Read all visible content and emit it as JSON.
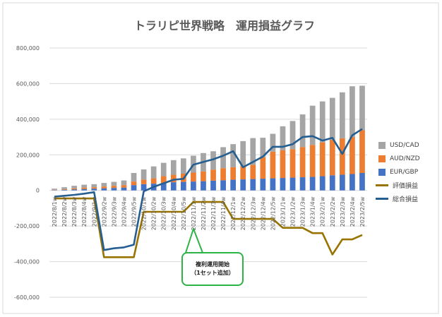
{
  "chart_data": {
    "type": "bar",
    "title": "トラリピ世界戦略　運用損益グラフ",
    "categories": [
      "2022/8/1w",
      "2022/8/2w",
      "2022/8/3w",
      "2022/8/4w",
      "2022/9/1w",
      "2022/9/2w",
      "2022/9/3w",
      "2022/9/4w",
      "2022/9/5w",
      "2022/10/1w",
      "2022/10/2w",
      "2022/10/3w",
      "2022/10/4w",
      "2022/10/5w",
      "2022/11/1w",
      "2022/11/2w",
      "2022/11/3w",
      "2022/11/4w",
      "2022/12/1w",
      "2022/12/2w",
      "2022/12/3w",
      "2022/12/4w",
      "2022/12/5w",
      "2023/1/1w",
      "2023/1/2w",
      "2023/1/3w",
      "2023/1/4w",
      "2023/2/1w",
      "2023/2/2w",
      "2023/2/3w",
      "2023/2/4w",
      "2023/2/5w"
    ],
    "series": [
      {
        "name": "EUR/GBP",
        "kind": "stacked-bar",
        "color": "#4472C4",
        "values": [
          2000,
          4000,
          6000,
          8000,
          10000,
          12000,
          14000,
          16000,
          30000,
          35000,
          38000,
          42000,
          46000,
          48000,
          50000,
          52000,
          55000,
          57000,
          60000,
          62000,
          64000,
          66000,
          68000,
          70000,
          72000,
          74000,
          76000,
          80000,
          85000,
          88000,
          92000,
          98000
        ]
      },
      {
        "name": "AUD/NZD",
        "kind": "stacked-bar",
        "color": "#ED7D31",
        "values": [
          2000,
          4000,
          6000,
          8000,
          8000,
          10000,
          12000,
          14000,
          20000,
          25000,
          30000,
          38000,
          42000,
          46000,
          50000,
          55000,
          62000,
          68000,
          70000,
          75000,
          80000,
          120000,
          150000,
          155000,
          160000,
          170000,
          180000,
          190000,
          200000,
          205000,
          208000,
          240000
        ]
      },
      {
        "name": "USD/CAD",
        "kind": "stacked-bar",
        "color": "#A5A5A5",
        "values": [
          6000,
          10000,
          14000,
          16000,
          17000,
          20000,
          22000,
          26000,
          48000,
          58000,
          67000,
          75000,
          82000,
          86000,
          95000,
          103000,
          103000,
          118000,
          130000,
          140000,
          150000,
          110000,
          100000,
          135000,
          158000,
          183000,
          220000,
          230000,
          235000,
          258000,
          285000,
          250000
        ]
      },
      {
        "name": "評価損益",
        "kind": "line",
        "color": "#997300",
        "values": [
          -45000,
          -45000,
          -45000,
          -45000,
          -45000,
          -375000,
          -375000,
          -375000,
          -375000,
          -120000,
          -120000,
          -120000,
          -120000,
          -120000,
          -65000,
          -65000,
          -65000,
          -65000,
          -160000,
          -160000,
          -160000,
          -160000,
          -160000,
          -210000,
          -210000,
          -210000,
          -240000,
          -240000,
          -360000,
          -275000,
          -275000,
          -250000
        ]
      },
      {
        "name": "総合損益",
        "kind": "line",
        "color": "#255E91",
        "values": [
          -35000,
          -30000,
          -25000,
          -18000,
          -10000,
          -335000,
          -325000,
          -320000,
          -305000,
          -5000,
          20000,
          40000,
          60000,
          65000,
          145000,
          160000,
          175000,
          195000,
          220000,
          130000,
          160000,
          190000,
          245000,
          245000,
          260000,
          300000,
          305000,
          280000,
          295000,
          205000,
          310000,
          345000
        ]
      }
    ],
    "xlabel": "",
    "ylabel": "",
    "yticks": [
      -600000,
      -400000,
      -200000,
      0,
      200000,
      400000,
      600000,
      800000
    ],
    "ytick_labels": [
      "-600,000",
      "-400,000",
      "-200,000",
      "0",
      "200,000",
      "400,000",
      "600,000",
      "800,000"
    ],
    "ylim": [
      -600000,
      800000
    ],
    "grid": true,
    "legend_position": "right",
    "legend": [
      "USD/CAD",
      "AUD/NZD",
      "EUR/GBP",
      "評価損益",
      "総合損益"
    ],
    "annotation": {
      "line1": "複利運用開始",
      "line2": "（1セット追加）",
      "border_color": "#2EB347"
    }
  }
}
